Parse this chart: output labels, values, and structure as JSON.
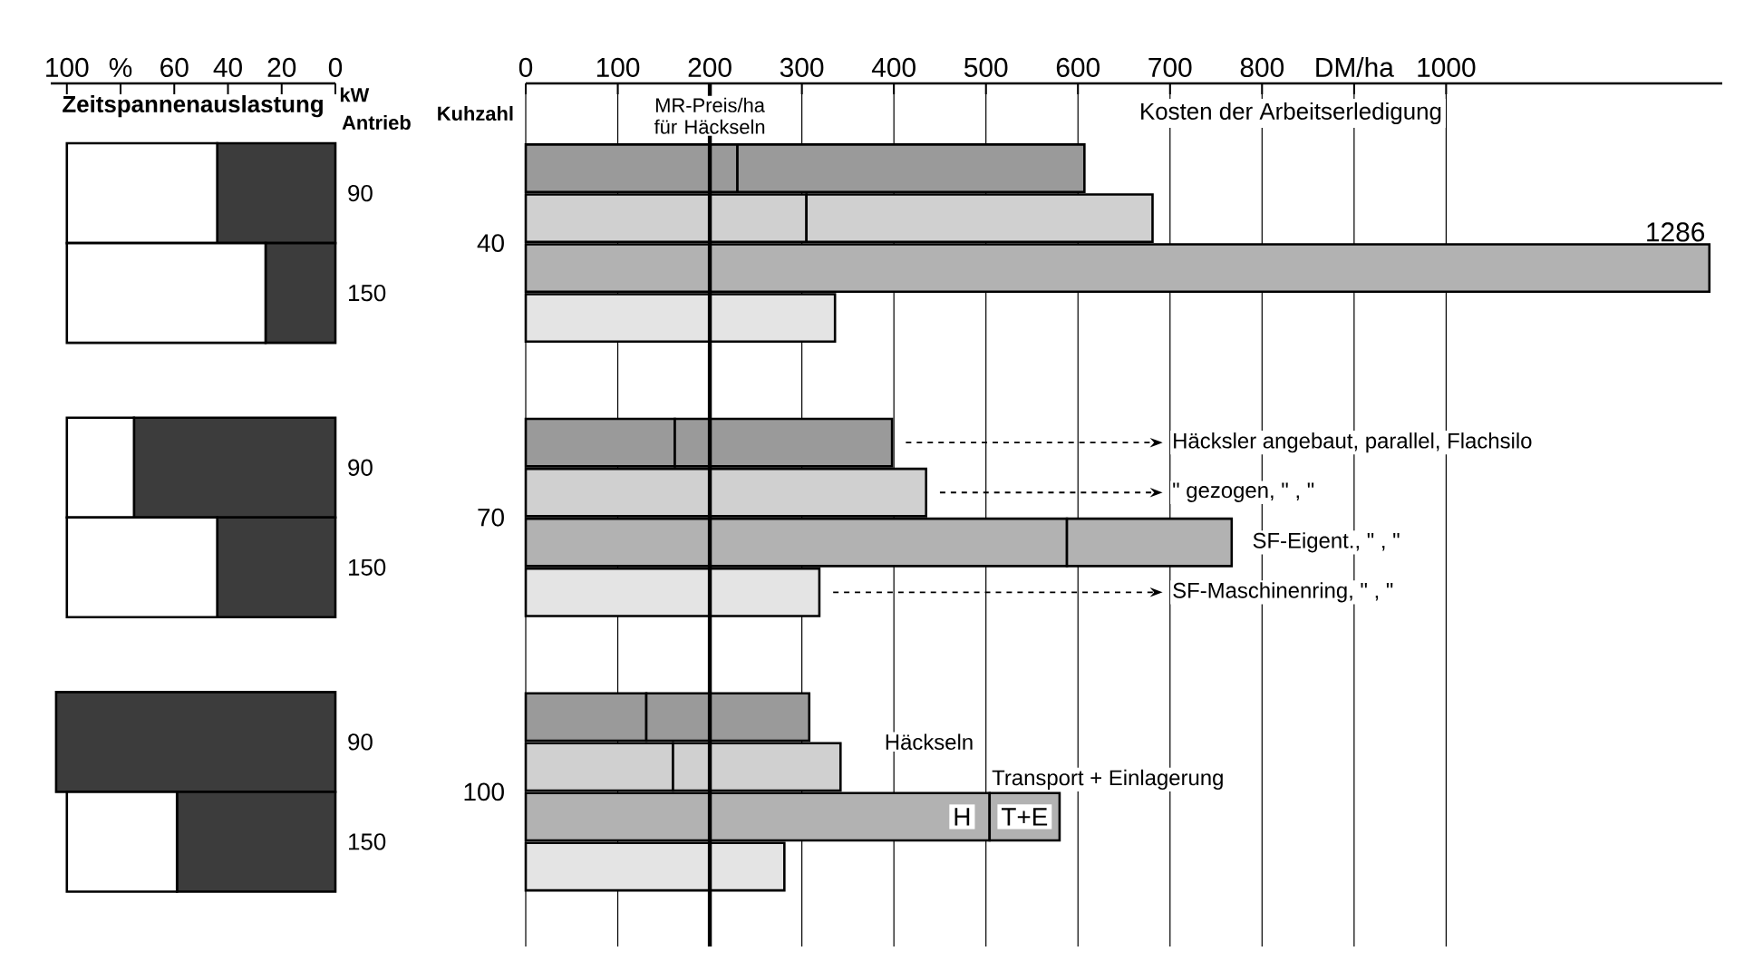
{
  "chart_data": [
    {
      "type": "bar",
      "orientation": "horizontal",
      "stacked": true,
      "xlabel": "Zeitspannenauslastung",
      "ylabel": "Antrieb",
      "categories": [
        "90",
        "150",
        "90",
        "150",
        "90",
        "150"
      ],
      "series": [
        {
          "color": "#3c3c3c",
          "values": [
            44,
            26,
            75,
            44,
            104,
            59
          ]
        },
        {
          "color": "#ffffff",
          "values": [
            56,
            74,
            25,
            56,
            null,
            41
          ]
        }
      ],
      "xlim": [
        106,
        0
      ],
      "xticks": [
        100,
        {
          "value": 80,
          "label": "%"
        },
        60,
        40,
        20,
        0
      ],
      "annotations": [
        "kW"
      ]
    },
    {
      "type": "bar",
      "orientation": "horizontal",
      "stacked": true,
      "title": "Kosten der Arbeitserledigung",
      "ylabel": "Kuhzahl",
      "categories": [
        null,
        null,
        null,
        null,
        null,
        null,
        null,
        null,
        null,
        null,
        null,
        null
      ],
      "series": [
        {
          "name": "H",
          "colors": [
            "#9a9a9a",
            "#d0d0d0",
            "#b2b2b2",
            "#e4e4e4",
            "#9a9a9a",
            "#d0d0d0",
            "#b2b2b2",
            "#e4e4e4",
            "#9a9a9a",
            "#d0d0d0",
            "#b2b2b2",
            "#e4e4e4"
          ],
          "values": [
            230,
            305,
            1286,
            336,
            162,
            200,
            588,
            319,
            131,
            160,
            504,
            281
          ],
          "value_labels": [
            null,
            null,
            "1286",
            null,
            null,
            null,
            null,
            null,
            null,
            null,
            null,
            null
          ]
        },
        {
          "name": "T+E",
          "colors": [
            "#9a9a9a",
            "#d0d0d0",
            "#b2b2b2",
            "#e4e4e4",
            "#9a9a9a",
            "#d0d0d0",
            "#b2b2b2",
            "#e4e4e4",
            "#9a9a9a",
            "#d0d0d0",
            "#b2b2b2",
            "#e4e4e4"
          ],
          "values": [
            377,
            376,
            null,
            null,
            236,
            235,
            179,
            null,
            177,
            182,
            76,
            null
          ]
        }
      ],
      "xlim": [
        0,
        1300
      ],
      "xticks": [
        0,
        100,
        200,
        300,
        400,
        500,
        600,
        700,
        800,
        {
          "value": 900,
          "label": "DM/ha"
        },
        1000
      ],
      "grid": "x",
      "ref_lines": [
        {
          "axis": "x",
          "value": 200,
          "label": "MR-Preis/ha für Häckseln"
        }
      ],
      "annotations": [
        "40",
        "70",
        "100",
        "Häcksler angebaut, parallel, Flachsilo",
        "\"   gezogen,   \"   ,   \"",
        "SF-Eigent.,   \"   ,   \"",
        "SF-Maschinenring,   \"   ,   \"",
        "Häckseln",
        "Transport + Einlagerung"
      ]
    }
  ]
}
